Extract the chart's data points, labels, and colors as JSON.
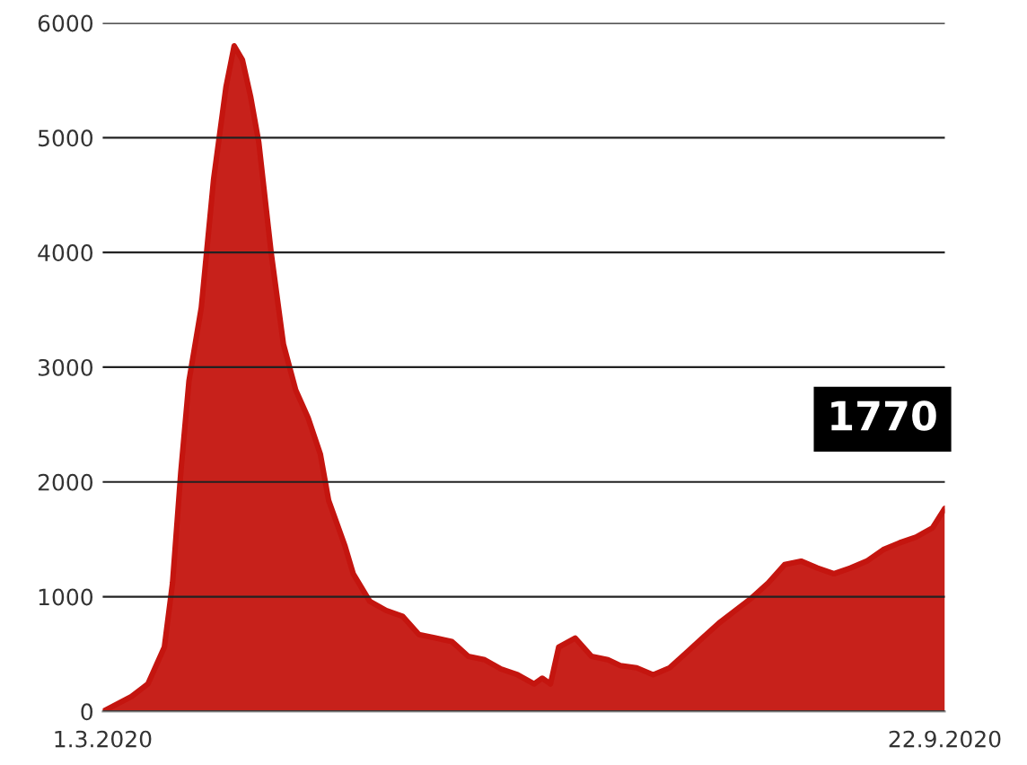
{
  "chart_data": {
    "type": "area",
    "x": [
      "2020-03-01",
      "2020-03-08",
      "2020-03-12",
      "2020-03-16",
      "2020-03-18",
      "2020-03-20",
      "2020-03-22",
      "2020-03-25",
      "2020-03-28",
      "2020-03-31",
      "2020-04-02",
      "2020-04-04",
      "2020-04-06",
      "2020-04-08",
      "2020-04-11",
      "2020-04-14",
      "2020-04-17",
      "2020-04-20",
      "2020-04-23",
      "2020-04-25",
      "2020-04-29",
      "2020-05-01",
      "2020-05-05",
      "2020-05-09",
      "2020-05-13",
      "2020-05-17",
      "2020-05-21",
      "2020-05-25",
      "2020-05-29",
      "2020-06-02",
      "2020-06-06",
      "2020-06-10",
      "2020-06-14",
      "2020-06-16",
      "2020-06-18",
      "2020-06-20",
      "2020-06-24",
      "2020-06-28",
      "2020-07-02",
      "2020-07-05",
      "2020-07-09",
      "2020-07-13",
      "2020-07-17",
      "2020-07-21",
      "2020-07-25",
      "2020-07-29",
      "2020-08-02",
      "2020-08-06",
      "2020-08-10",
      "2020-08-14",
      "2020-08-18",
      "2020-08-22",
      "2020-08-26",
      "2020-08-30",
      "2020-09-03",
      "2020-09-07",
      "2020-09-11",
      "2020-09-15",
      "2020-09-19",
      "2020-09-22"
    ],
    "series": [
      {
        "color": "#c4150f",
        "values": [
          0,
          130,
          240,
          560,
          1120,
          2080,
          2880,
          3520,
          4640,
          5440,
          5800,
          5680,
          5360,
          4960,
          4000,
          3200,
          2800,
          2560,
          2240,
          1840,
          1440,
          1200,
          960,
          880,
          830,
          670,
          640,
          610,
          480,
          450,
          370,
          320,
          240,
          290,
          240,
          560,
          640,
          480,
          450,
          400,
          380,
          320,
          380,
          510,
          640,
          770,
          880,
          990,
          1120,
          1280,
          1310,
          1250,
          1200,
          1250,
          1310,
          1410,
          1470,
          1520,
          1600,
          1770
        ]
      }
    ],
    "xlim": [
      "2020-03-01",
      "2020-09-22"
    ],
    "xticks": [
      {
        "value": "2020-03-01",
        "label": "1.3.2020"
      },
      {
        "value": "2020-09-22",
        "label": "22.9.2020"
      }
    ],
    "ylim": [
      0,
      6000
    ],
    "yticks": [
      0,
      1000,
      2000,
      3000,
      4000,
      5000,
      6000
    ],
    "grid": "y",
    "annotations": [
      {
        "text": "1770",
        "x": "2020-09-22",
        "y": 1770
      }
    ]
  }
}
